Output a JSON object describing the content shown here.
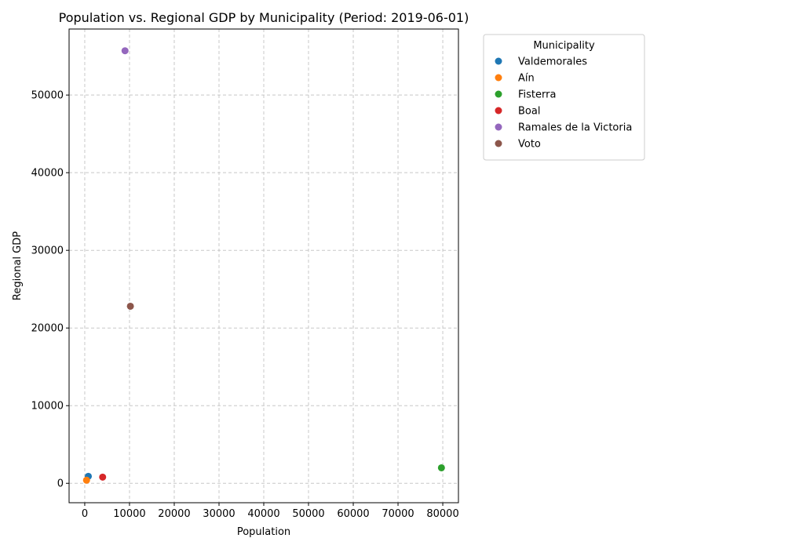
{
  "chart_data": {
    "type": "scatter",
    "title": "Population vs. Regional GDP by Municipality (Period: 2019-06-01)",
    "xlabel": "Population",
    "ylabel": "Regional GDP",
    "xlim": [
      -3500,
      83500
    ],
    "ylim": [
      -2500,
      58500
    ],
    "xticks": [
      0,
      10000,
      20000,
      30000,
      40000,
      50000,
      60000,
      70000,
      80000
    ],
    "yticks": [
      0,
      10000,
      20000,
      30000,
      40000,
      50000
    ],
    "grid": true,
    "legend": {
      "title": "Municipality",
      "placement": "outside-upper-right"
    },
    "series": [
      {
        "name": "Valdemorales",
        "color": "#1f77b4",
        "points": [
          [
            800,
            900
          ]
        ]
      },
      {
        "name": "Aín",
        "color": "#ff7f0e",
        "points": [
          [
            400,
            400
          ]
        ]
      },
      {
        "name": "Fisterra",
        "color": "#2ca02c",
        "points": [
          [
            79700,
            2000
          ]
        ]
      },
      {
        "name": "Boal",
        "color": "#d62728",
        "points": [
          [
            4000,
            800
          ]
        ]
      },
      {
        "name": "Ramales de la Victoria",
        "color": "#9467bd",
        "points": [
          [
            9000,
            55700
          ]
        ]
      },
      {
        "name": "Voto",
        "color": "#8c564b",
        "points": [
          [
            10200,
            22800
          ]
        ]
      }
    ]
  }
}
